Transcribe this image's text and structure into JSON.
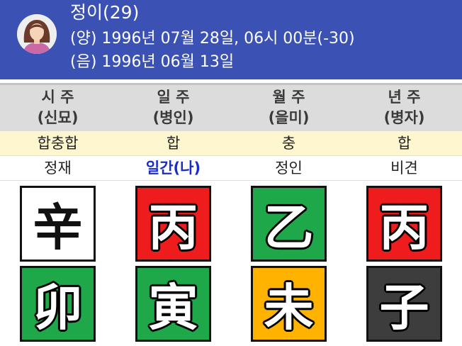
{
  "header": {
    "name": "정이(29)",
    "solar": "(양) 1996년 07월 28일, 06시 00분(-30)",
    "lunar": "(음) 1996년 06월 13일"
  },
  "pillars": [
    {
      "title": "시 주",
      "sub": "(신묘)"
    },
    {
      "title": "일 주",
      "sub": "(병인)"
    },
    {
      "title": "월 주",
      "sub": "(을미)"
    },
    {
      "title": "년 주",
      "sub": "(병자)"
    }
  ],
  "relations": [
    "합충합",
    "합",
    "충",
    "합"
  ],
  "ten_gods": [
    "정재",
    "일간(나)",
    "정인",
    "비견"
  ],
  "stems": [
    {
      "char": "辛",
      "color": "#ffffff"
    },
    {
      "char": "丙",
      "color": "#ee1c1c"
    },
    {
      "char": "乙",
      "color": "#1fa84a"
    },
    {
      "char": "丙",
      "color": "#ee1c1c"
    }
  ],
  "branches": [
    {
      "char": "卯",
      "color": "#1fa84a"
    },
    {
      "char": "寅",
      "color": "#1fa84a"
    },
    {
      "char": "未",
      "color": "#ffb300"
    },
    {
      "char": "子",
      "color": "#3d3d3d"
    }
  ],
  "colors": {
    "header_bg": "#3b52b4",
    "self_highlight": "#1a2bcc",
    "relation_bg": "#fdf6cf"
  },
  "icons": {
    "avatar": "female-avatar-icon"
  }
}
